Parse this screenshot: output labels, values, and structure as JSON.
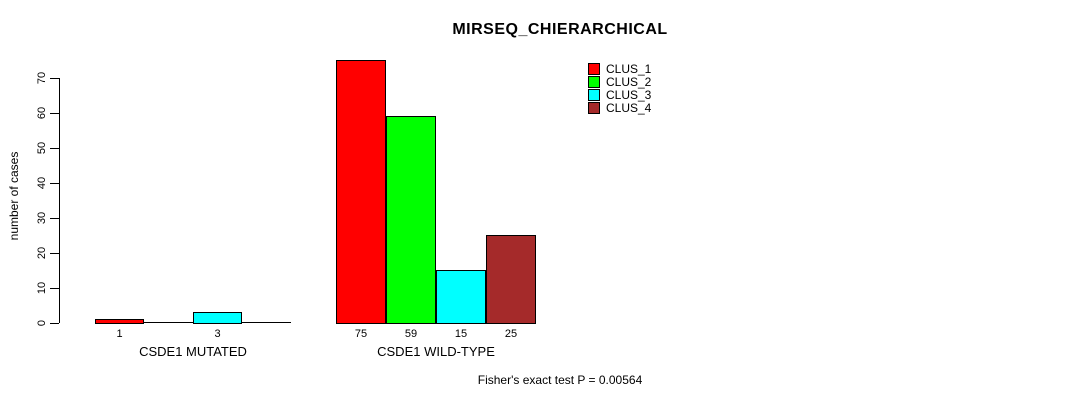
{
  "chart_data": {
    "type": "bar",
    "title": "MIRSEQ_CHIERARCHICAL",
    "ylabel": "number of cases",
    "xlabel": "",
    "ylim": [
      0,
      70
    ],
    "yticks": [
      0,
      10,
      20,
      30,
      40,
      50,
      60,
      70
    ],
    "grid": false,
    "legend_position": "top-right-inside",
    "categories": [
      "CSDE1 MUTATED",
      "CSDE1 WILD-TYPE"
    ],
    "series": [
      {
        "name": "CLUS_1",
        "color": "#ff0000",
        "values": [
          1,
          75
        ]
      },
      {
        "name": "CLUS_2",
        "color": "#00ff00",
        "values": [
          0,
          59
        ]
      },
      {
        "name": "CLUS_3",
        "color": "#00ffff",
        "values": [
          3,
          15
        ]
      },
      {
        "name": "CLUS_4",
        "color": "#a52a2a",
        "values": [
          0,
          25
        ]
      }
    ],
    "show_bar_value_labels_for_nonzero_only": true,
    "annotation": "Fisher's exact test P = 0.00564",
    "axis_color": "#000000",
    "background": "#ffffff"
  }
}
